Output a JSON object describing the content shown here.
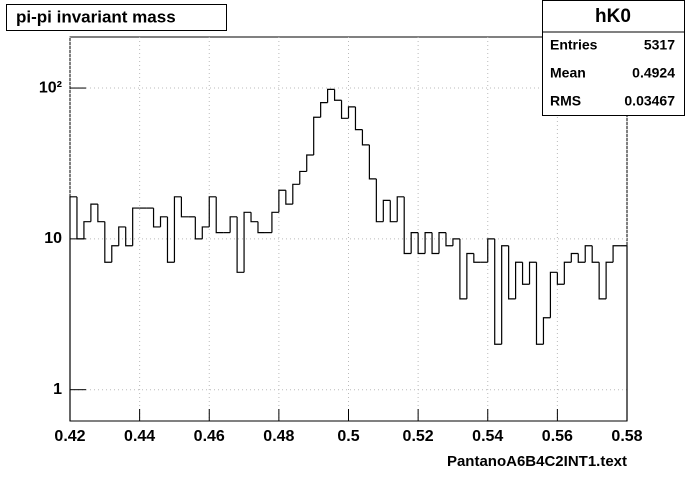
{
  "chart_data": {
    "type": "histogram",
    "title": "pi-pi invariant mass",
    "x_label": "PantanoA6B4C2INT1.text",
    "bins": [
      0.42,
      0.422,
      0.424,
      0.426,
      0.428,
      0.43,
      0.432,
      0.434,
      0.436,
      0.438,
      0.44,
      0.442,
      0.444,
      0.446,
      0.448,
      0.45,
      0.452,
      0.454,
      0.456,
      0.458,
      0.46,
      0.462,
      0.464,
      0.466,
      0.468,
      0.47,
      0.472,
      0.474,
      0.476,
      0.478,
      0.48,
      0.482,
      0.484,
      0.486,
      0.488,
      0.49,
      0.492,
      0.494,
      0.496,
      0.498,
      0.5,
      0.502,
      0.504,
      0.506,
      0.508,
      0.51,
      0.512,
      0.514,
      0.516,
      0.518,
      0.52,
      0.522,
      0.524,
      0.526,
      0.528,
      0.53,
      0.532,
      0.534,
      0.536,
      0.538,
      0.54,
      0.542,
      0.544,
      0.546,
      0.548,
      0.55,
      0.552,
      0.554,
      0.556,
      0.558,
      0.56,
      0.562,
      0.564,
      0.566,
      0.568,
      0.57,
      0.572,
      0.574,
      0.576,
      0.578,
      0.58
    ],
    "values": [
      19,
      10,
      13,
      17,
      13,
      7,
      9,
      12,
      9,
      16,
      16,
      16,
      12,
      14,
      7,
      19,
      14,
      14,
      10,
      12,
      19,
      11,
      11,
      14,
      6,
      15,
      13,
      11,
      11,
      15,
      21,
      17,
      23,
      28,
      36,
      64,
      80,
      98,
      83,
      63,
      75,
      53,
      42,
      25,
      13,
      18,
      13,
      19,
      8,
      11,
      8,
      11,
      8,
      11,
      9,
      10,
      4,
      8,
      7,
      7,
      10,
      2,
      9,
      4,
      7,
      5,
      7,
      2,
      3,
      6,
      5,
      7,
      8,
      7,
      9,
      7,
      4,
      7,
      9,
      9
    ],
    "color": "#000000",
    "xlim": [
      0.42,
      0.58
    ],
    "xticks": [
      0.42,
      0.44,
      0.46,
      0.48,
      0.5,
      0.52,
      0.54,
      0.56,
      0.58
    ],
    "ylim": [
      0.62,
      218
    ],
    "yticks": [
      1,
      10,
      {
        "value": 100,
        "label": "10²"
      }
    ],
    "log_y": true,
    "grid": true,
    "stats": {
      "title": "hK0",
      "rows": [
        {
          "label": "Entries",
          "value": 5317
        },
        {
          "label": "Mean",
          "value": 0.4924
        },
        {
          "label": "RMS",
          "value": 0.03467
        }
      ]
    }
  }
}
